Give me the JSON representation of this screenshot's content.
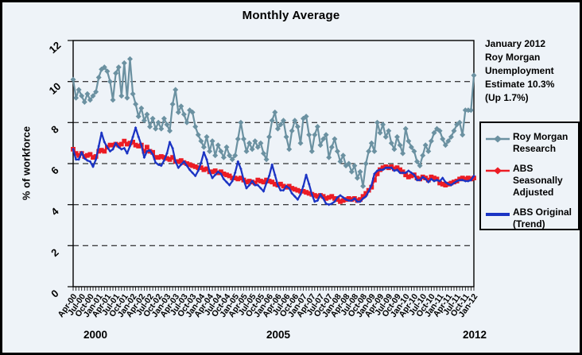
{
  "colors": {
    "background": "#EEF3F8",
    "frame": "#000000",
    "grid": "#000000"
  },
  "chart_data": {
    "type": "line",
    "title": "Monthly Average",
    "ylabel": "% of workforce",
    "ylim": [
      0,
      12
    ],
    "yticks": [
      0,
      2,
      4,
      6,
      8,
      10,
      12
    ],
    "grid_values": [
      2,
      4,
      6,
      8,
      10
    ],
    "grid_style": "dashed",
    "legend_position": "right",
    "x_frequency": "monthly",
    "x_range": "Apr-2000 to Jan-2012",
    "xtick_labels": [
      "Apr-00",
      "Jul-00",
      "Oct-00",
      "Jan-01",
      "Apr-01",
      "Jul-01",
      "Oct-01",
      "Jan-02",
      "Apr-02",
      "Jul-02",
      "Oct-02",
      "Jan-03",
      "Apr-03",
      "Jul-03",
      "Oct-03",
      "Jan-04",
      "Apr-04",
      "Jul-04",
      "Oct-04",
      "Jan-05",
      "Apr-05",
      "Jul-05",
      "Oct-05",
      "Jan-06",
      "Apr-06",
      "Jul-06",
      "Oct-06",
      "Jan-07",
      "Apr-07",
      "Jul-07",
      "Oct-07",
      "Jan-08",
      "Apr-08",
      "Jul-08",
      "Oct-08",
      "Jan-09",
      "Apr-09",
      "Jul-09",
      "Oct-09",
      "Jan-10",
      "Apr-10",
      "Jul-10",
      "Oct-10",
      "Jan-11",
      "Apr-11",
      "Jul-11",
      "Oct-11",
      "Jan-12"
    ],
    "year_labels": [
      {
        "text": "2000",
        "x": 120
      },
      {
        "text": "2005",
        "x": 350
      },
      {
        "text": "2012",
        "x": 597
      }
    ],
    "annotation": {
      "lines": [
        "January 2012",
        "Roy Morgan",
        "Unemployment",
        "Estimate 10.3%",
        "(Up 1.7%)"
      ]
    },
    "legend": [
      {
        "id": "roy-morgan",
        "label_lines": [
          "Roy Morgan",
          "Research"
        ],
        "color": "#6B91A1",
        "marker": "diamond"
      },
      {
        "id": "abs-seasonally-adjusted",
        "label_lines": [
          "ABS Seasonally",
          "Adjusted"
        ],
        "color": "#EC1C24",
        "marker": "diamond"
      },
      {
        "id": "abs-original-trend",
        "label_lines": [
          "ABS Original",
          "(Trend)"
        ],
        "color": "#1B34C4",
        "marker": "line"
      }
    ],
    "series": [
      {
        "id": "abs-seasonally-adjusted",
        "name": "ABS Seasonally Adjusted",
        "color": "#EC1C24",
        "marker": "square",
        "marker_size": 2.9,
        "width": 2.3,
        "values": [
          6.7,
          6.5,
          6.4,
          6.5,
          6.35,
          6.4,
          6.45,
          6.3,
          6.35,
          6.6,
          6.65,
          6.6,
          6.8,
          6.9,
          6.9,
          6.95,
          6.9,
          6.95,
          7.1,
          6.95,
          7.0,
          7.05,
          6.9,
          6.85,
          6.9,
          6.6,
          6.8,
          6.6,
          6.55,
          6.3,
          6.3,
          6.35,
          6.3,
          6.25,
          6.2,
          6.3,
          6.1,
          6.1,
          6.15,
          6.05,
          6.0,
          5.95,
          5.9,
          5.85,
          5.8,
          5.8,
          5.7,
          5.75,
          5.6,
          5.6,
          5.65,
          5.55,
          5.6,
          5.5,
          5.45,
          5.4,
          5.3,
          5.3,
          5.25,
          5.3,
          5.2,
          5.1,
          5.15,
          5.1,
          5.05,
          5.2,
          5.15,
          5.1,
          5.2,
          5.15,
          5.1,
          5.0,
          4.95,
          5.0,
          4.9,
          4.85,
          4.9,
          4.8,
          4.75,
          4.7,
          4.65,
          4.65,
          4.6,
          4.55,
          4.5,
          4.45,
          4.4,
          4.45,
          4.4,
          4.3,
          4.35,
          4.4,
          4.3,
          4.25,
          4.15,
          4.2,
          4.25,
          4.3,
          4.25,
          4.3,
          4.2,
          4.25,
          4.4,
          4.55,
          4.7,
          4.85,
          5.2,
          5.5,
          5.7,
          5.8,
          5.85,
          5.8,
          5.85,
          5.75,
          5.8,
          5.7,
          5.6,
          5.45,
          5.35,
          5.4,
          5.45,
          5.3,
          5.25,
          5.35,
          5.3,
          5.2,
          5.35,
          5.3,
          5.25,
          5.05,
          5.0,
          4.95,
          5.0,
          5.05,
          5.1,
          5.15,
          5.25,
          5.3,
          5.25,
          5.3,
          5.25,
          5.3
        ]
      },
      {
        "id": "abs-original-trend",
        "name": "ABS Original (Trend)",
        "color": "#1B34C4",
        "marker": "diamond",
        "marker_size": 1.8,
        "width": 2.3,
        "values": [
          6.7,
          6.2,
          6.2,
          6.55,
          6.25,
          6.15,
          6.1,
          5.85,
          6.2,
          6.85,
          7.5,
          7.05,
          6.8,
          6.6,
          6.7,
          7.0,
          6.8,
          6.7,
          6.75,
          6.5,
          6.85,
          7.3,
          7.75,
          7.3,
          6.9,
          6.3,
          6.6,
          6.65,
          6.45,
          6.05,
          5.95,
          5.9,
          6.15,
          6.5,
          7.05,
          6.75,
          6.1,
          5.8,
          5.95,
          6.1,
          5.9,
          5.7,
          5.55,
          5.4,
          5.65,
          6.05,
          6.55,
          6.2,
          5.6,
          5.3,
          5.45,
          5.6,
          5.5,
          5.25,
          5.1,
          4.95,
          5.15,
          5.55,
          6.1,
          5.75,
          5.2,
          4.8,
          4.95,
          5.15,
          4.95,
          4.95,
          4.8,
          4.65,
          5.05,
          5.4,
          5.95,
          5.45,
          4.95,
          4.7,
          4.7,
          4.9,
          4.8,
          4.55,
          4.4,
          4.25,
          4.5,
          4.9,
          5.45,
          5.0,
          4.5,
          4.15,
          4.2,
          4.5,
          4.3,
          4.05,
          4.0,
          4.05,
          4.15,
          4.35,
          4.45,
          4.35,
          4.25,
          4.2,
          4.2,
          4.3,
          4.15,
          4.15,
          4.3,
          4.4,
          4.65,
          4.95,
          5.5,
          5.65,
          5.7,
          5.7,
          5.8,
          5.8,
          5.8,
          5.65,
          5.7,
          5.55,
          5.55,
          5.55,
          5.65,
          5.55,
          5.45,
          5.2,
          5.2,
          5.35,
          5.25,
          5.1,
          5.25,
          5.15,
          5.2,
          5.15,
          5.3,
          5.1,
          5.0,
          4.95,
          5.05,
          5.15,
          5.2,
          5.2,
          5.15,
          5.15,
          5.2,
          5.4
        ]
      },
      {
        "id": "roy-morgan",
        "name": "Roy Morgan Research",
        "color": "#6B91A1",
        "marker": "diamond",
        "marker_size": 3.5,
        "width": 2.2,
        "values": [
          10.1,
          9.2,
          9.6,
          9.3,
          9.0,
          9.4,
          9.1,
          9.3,
          9.5,
          10.2,
          10.6,
          10.7,
          10.5,
          10.0,
          9.1,
          10.4,
          10.7,
          9.3,
          10.9,
          9.2,
          11.1,
          9.4,
          8.9,
          8.3,
          8.7,
          8.1,
          8.4,
          7.8,
          8.2,
          7.7,
          8.0,
          7.7,
          8.2,
          7.9,
          7.6,
          8.9,
          9.6,
          8.5,
          8.8,
          8.4,
          8.0,
          8.6,
          8.5,
          7.8,
          7.4,
          7.1,
          6.8,
          7.3,
          6.6,
          7.1,
          6.4,
          6.9,
          6.6,
          6.3,
          6.8,
          6.4,
          6.2,
          6.4,
          7.2,
          8.0,
          7.2,
          6.6,
          7.0,
          6.7,
          7.1,
          6.8,
          7.0,
          6.5,
          6.2,
          7.3,
          8.1,
          8.5,
          7.7,
          7.9,
          8.1,
          7.3,
          6.7,
          7.6,
          8.1,
          7.8,
          7.0,
          8.2,
          8.3,
          7.4,
          6.6,
          7.4,
          7.8,
          6.9,
          7.2,
          7.4,
          6.3,
          6.8,
          7.2,
          6.6,
          6.1,
          6.4,
          5.9,
          6.0,
          5.6,
          5.9,
          5.3,
          5.6,
          4.9,
          6.0,
          6.6,
          7.0,
          6.6,
          8.0,
          7.5,
          7.9,
          7.3,
          7.6,
          7.0,
          6.7,
          7.3,
          6.9,
          6.5,
          7.7,
          7.1,
          6.8,
          6.6,
          6.1,
          5.9,
          6.4,
          6.9,
          6.6,
          7.1,
          7.5,
          7.7,
          7.6,
          7.2,
          6.9,
          7.1,
          7.3,
          7.6,
          7.9,
          8.0,
          7.4,
          8.6,
          8.6,
          8.6,
          10.3
        ]
      }
    ]
  }
}
